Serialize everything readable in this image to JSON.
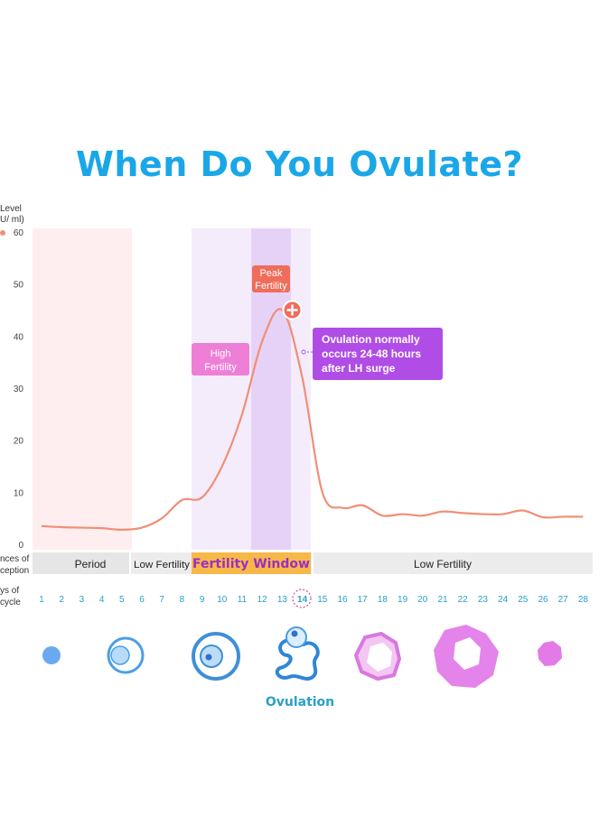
{
  "title": "When Do You Ovulate?",
  "colors": {
    "title": "#1aa7e8",
    "curve": "#ef8f76",
    "period_band": "#ffeef0",
    "high_fertility_band": "#f4ecfb",
    "peak_band": "#e7d2f7",
    "fertility_window_bar": "#f7b84a",
    "phase_bar": "#ececec",
    "peak_box": "#ef6d5a",
    "high_box": "#ee7fd6",
    "ovulation_box": "#b04de6",
    "day_number": "#2aa0c8"
  },
  "axis": {
    "y_label_line1": "Level",
    "y_label_line2": "U/ ml)",
    "y_ticks": [
      60,
      50,
      40,
      30,
      20,
      10,
      0
    ],
    "chances_label_line1": "nces of",
    "chances_label_line2": "ception",
    "days_label_line1": "ys of",
    "days_label_line2": "cycle"
  },
  "phases": {
    "period": "Period",
    "low_fertility_1": "Low Fertility",
    "fertility_window": "Fertility Window",
    "low_fertility_2": "Low Fertility"
  },
  "callouts": {
    "peak_line1": "Peak",
    "peak_line2": "Fertility",
    "high_line1": "High",
    "high_line2": "Fertility",
    "ovulation_line1": "Ovulation normally",
    "ovulation_line2": "occurs 24-48 hours",
    "ovulation_line3": "after LH surge"
  },
  "ovulation_label": "Ovulation",
  "chart_data": {
    "type": "line",
    "title": "When Do You Ovulate?",
    "ylabel": "Level (U/ ml)",
    "xlabel": "Days of cycle",
    "ylim": [
      0,
      60
    ],
    "x": [
      1,
      2,
      3,
      4,
      5,
      6,
      7,
      8,
      9,
      10,
      11,
      12,
      13,
      14,
      15,
      16,
      17,
      18,
      19,
      20,
      21,
      22,
      23,
      24,
      25,
      26,
      27,
      28
    ],
    "x_labels": [
      "1",
      "2",
      "3",
      "4",
      "5",
      "6",
      "7",
      "8",
      "9",
      "10",
      "11",
      "12",
      "13",
      "14",
      "15",
      "16",
      "17",
      "18",
      "19",
      "20",
      "21",
      "22",
      "23",
      "24",
      "25",
      "26",
      "27",
      "28"
    ],
    "highlighted_day": "14",
    "series": [
      {
        "values": [
          3.5,
          3.3,
          3.2,
          3.1,
          2.8,
          3.2,
          5,
          8.5,
          9,
          15,
          25,
          39,
          45,
          32,
          10,
          7,
          7.5,
          5.5,
          5.8,
          5.5,
          6.3,
          6,
          5.8,
          5.8,
          6.5,
          5.2,
          5.3,
          5.3
        ]
      }
    ],
    "peak": {
      "x": 13,
      "y": 45
    }
  }
}
